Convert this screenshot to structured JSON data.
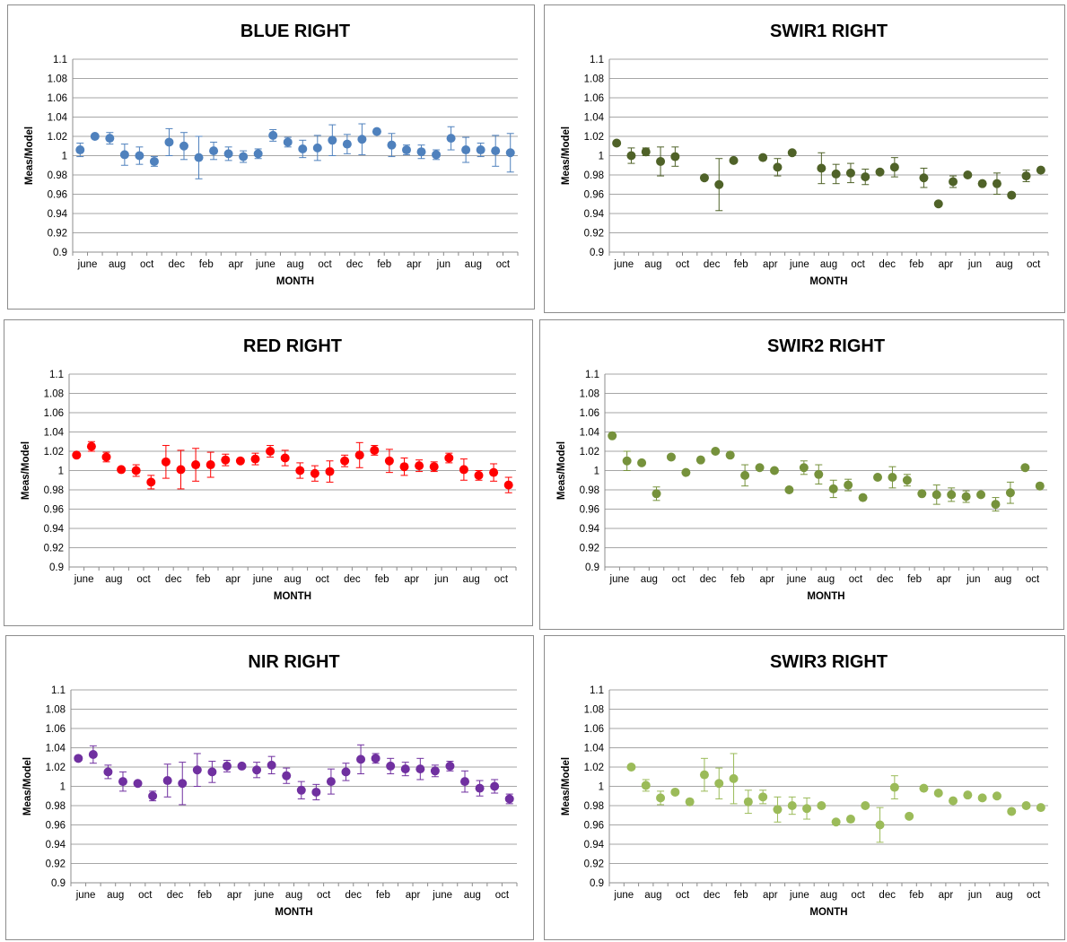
{
  "chart_data": [
    {
      "type": "scatter",
      "title": "BLUE RIGHT",
      "xlabel": "MONTH",
      "ylabel": "Meas/Model",
      "ylim": [
        0.9,
        1.1
      ],
      "ystep": 0.02,
      "grid": true,
      "color": "#4f81bd",
      "tick_labels": [
        "june",
        "aug",
        "oct",
        "dec",
        "feb",
        "apr",
        "june",
        "aug",
        "oct",
        "dec",
        "feb",
        "apr",
        "jun",
        "aug",
        "oct"
      ],
      "n_slots": 30,
      "points": [
        {
          "x": 1,
          "y": 1.006,
          "err": 0.007
        },
        {
          "x": 2,
          "y": 1.02,
          "err": 0.0
        },
        {
          "x": 3,
          "y": 1.018,
          "err": 0.006
        },
        {
          "x": 4,
          "y": 1.001,
          "err": 0.011
        },
        {
          "x": 5,
          "y": 1.0,
          "err": 0.009
        },
        {
          "x": 6,
          "y": 0.994,
          "err": 0.005
        },
        {
          "x": 7,
          "y": 1.014,
          "err": 0.014
        },
        {
          "x": 8,
          "y": 1.01,
          "err": 0.014
        },
        {
          "x": 9,
          "y": 0.998,
          "err": 0.022
        },
        {
          "x": 10,
          "y": 1.005,
          "err": 0.009
        },
        {
          "x": 11,
          "y": 1.002,
          "err": 0.007
        },
        {
          "x": 12,
          "y": 0.999,
          "err": 0.006
        },
        {
          "x": 13,
          "y": 1.002,
          "err": 0.005
        },
        {
          "x": 14,
          "y": 1.021,
          "err": 0.006
        },
        {
          "x": 15,
          "y": 1.014,
          "err": 0.005
        },
        {
          "x": 16,
          "y": 1.007,
          "err": 0.009
        },
        {
          "x": 17,
          "y": 1.008,
          "err": 0.013
        },
        {
          "x": 18,
          "y": 1.016,
          "err": 0.016
        },
        {
          "x": 19,
          "y": 1.012,
          "err": 0.01
        },
        {
          "x": 20,
          "y": 1.017,
          "err": 0.016
        },
        {
          "x": 21,
          "y": 1.025,
          "err": 0.0
        },
        {
          "x": 22,
          "y": 1.011,
          "err": 0.012
        },
        {
          "x": 23,
          "y": 1.006,
          "err": 0.005
        },
        {
          "x": 24,
          "y": 1.004,
          "err": 0.007
        },
        {
          "x": 25,
          "y": 1.001,
          "err": 0.005
        },
        {
          "x": 26,
          "y": 1.018,
          "err": 0.012
        },
        {
          "x": 27,
          "y": 1.006,
          "err": 0.013
        },
        {
          "x": 28,
          "y": 1.006,
          "err": 0.007
        },
        {
          "x": 29,
          "y": 1.005,
          "err": 0.016
        },
        {
          "x": 30,
          "y": 1.003,
          "err": 0.02
        }
      ]
    },
    {
      "type": "scatter",
      "title": "SWIR1 RIGHT",
      "xlabel": "MONTH",
      "ylabel": "Meas/Model",
      "ylim": [
        0.9,
        1.1
      ],
      "ystep": 0.02,
      "grid": true,
      "color": "#4f6228",
      "tick_labels": [
        "june",
        "aug",
        "oct",
        "dec",
        "feb",
        "apr",
        "june",
        "aug",
        "oct",
        "dec",
        "feb",
        "apr",
        "jun",
        "aug",
        "oct"
      ],
      "n_slots": 30,
      "points": [
        {
          "x": 1,
          "y": 1.013,
          "err": 0.0
        },
        {
          "x": 2,
          "y": 1.0,
          "err": 0.008
        },
        {
          "x": 3,
          "y": 1.004,
          "err": 0.004
        },
        {
          "x": 4,
          "y": 0.994,
          "err": 0.015
        },
        {
          "x": 5,
          "y": 0.999,
          "err": 0.01
        },
        {
          "x": 7,
          "y": 0.977,
          "err": 0.0
        },
        {
          "x": 8,
          "y": 0.97,
          "err": 0.027
        },
        {
          "x": 9,
          "y": 0.995,
          "err": 0.0
        },
        {
          "x": 11,
          "y": 0.998,
          "err": 0.0
        },
        {
          "x": 12,
          "y": 0.988,
          "err": 0.009
        },
        {
          "x": 13,
          "y": 1.003,
          "err": 0.0
        },
        {
          "x": 15,
          "y": 0.987,
          "err": 0.016
        },
        {
          "x": 16,
          "y": 0.981,
          "err": 0.01
        },
        {
          "x": 17,
          "y": 0.982,
          "err": 0.01
        },
        {
          "x": 18,
          "y": 0.978,
          "err": 0.008
        },
        {
          "x": 19,
          "y": 0.983,
          "err": 0.0
        },
        {
          "x": 20,
          "y": 0.988,
          "err": 0.01
        },
        {
          "x": 22,
          "y": 0.977,
          "err": 0.01
        },
        {
          "x": 23,
          "y": 0.95,
          "err": 0.0
        },
        {
          "x": 24,
          "y": 0.973,
          "err": 0.006
        },
        {
          "x": 25,
          "y": 0.98,
          "err": 0.0
        },
        {
          "x": 26,
          "y": 0.971,
          "err": 0.0
        },
        {
          "x": 27,
          "y": 0.971,
          "err": 0.011
        },
        {
          "x": 28,
          "y": 0.959,
          "err": 0.0
        },
        {
          "x": 29,
          "y": 0.979,
          "err": 0.006
        },
        {
          "x": 30,
          "y": 0.985,
          "err": 0.0
        }
      ]
    },
    {
      "type": "scatter",
      "title": "RED RIGHT",
      "xlabel": "MONTH",
      "ylabel": "Meas/Model",
      "ylim": [
        0.9,
        1.1
      ],
      "ystep": 0.02,
      "grid": true,
      "color": "#ff0000",
      "tick_labels": [
        "june",
        "aug",
        "oct",
        "dec",
        "feb",
        "apr",
        "june",
        "aug",
        "oct",
        "dec",
        "feb",
        "apr",
        "jun",
        "aug",
        "oct"
      ],
      "n_slots": 30,
      "points": [
        {
          "x": 1,
          "y": 1.016,
          "err": 0.0
        },
        {
          "x": 2,
          "y": 1.025,
          "err": 0.005
        },
        {
          "x": 3,
          "y": 1.014,
          "err": 0.005
        },
        {
          "x": 4,
          "y": 1.001,
          "err": 0.0
        },
        {
          "x": 5,
          "y": 1.0,
          "err": 0.006
        },
        {
          "x": 6,
          "y": 0.988,
          "err": 0.007
        },
        {
          "x": 7,
          "y": 1.009,
          "err": 0.017
        },
        {
          "x": 8,
          "y": 1.001,
          "err": 0.02
        },
        {
          "x": 9,
          "y": 1.006,
          "err": 0.017
        },
        {
          "x": 10,
          "y": 1.006,
          "err": 0.013
        },
        {
          "x": 11,
          "y": 1.011,
          "err": 0.006
        },
        {
          "x": 12,
          "y": 1.01,
          "err": 0.0
        },
        {
          "x": 13,
          "y": 1.012,
          "err": 0.006
        },
        {
          "x": 14,
          "y": 1.02,
          "err": 0.006
        },
        {
          "x": 15,
          "y": 1.013,
          "err": 0.008
        },
        {
          "x": 16,
          "y": 1.0,
          "err": 0.008
        },
        {
          "x": 17,
          "y": 0.997,
          "err": 0.008
        },
        {
          "x": 18,
          "y": 0.999,
          "err": 0.011
        },
        {
          "x": 19,
          "y": 1.01,
          "err": 0.006
        },
        {
          "x": 20,
          "y": 1.016,
          "err": 0.013
        },
        {
          "x": 21,
          "y": 1.021,
          "err": 0.005
        },
        {
          "x": 22,
          "y": 1.01,
          "err": 0.012
        },
        {
          "x": 23,
          "y": 1.004,
          "err": 0.009
        },
        {
          "x": 24,
          "y": 1.005,
          "err": 0.006
        },
        {
          "x": 25,
          "y": 1.004,
          "err": 0.005
        },
        {
          "x": 26,
          "y": 1.013,
          "err": 0.005
        },
        {
          "x": 27,
          "y": 1.001,
          "err": 0.011
        },
        {
          "x": 28,
          "y": 0.995,
          "err": 0.005
        },
        {
          "x": 29,
          "y": 0.998,
          "err": 0.009
        },
        {
          "x": 30,
          "y": 0.985,
          "err": 0.008
        }
      ]
    },
    {
      "type": "scatter",
      "title": "SWIR2 RIGHT",
      "xlabel": "MONTH",
      "ylabel": "Meas/Model",
      "ylim": [
        0.9,
        1.1
      ],
      "ystep": 0.02,
      "grid": true,
      "color": "#76923c",
      "tick_labels": [
        "june",
        "aug",
        "oct",
        "dec",
        "feb",
        "apr",
        "june",
        "aug",
        "oct",
        "dec",
        "feb",
        "apr",
        "jun",
        "aug",
        "oct"
      ],
      "n_slots": 30,
      "points": [
        {
          "x": 1,
          "y": 1.036,
          "err": 0.0
        },
        {
          "x": 2,
          "y": 1.01,
          "err": 0.01
        },
        {
          "x": 3,
          "y": 1.008,
          "err": 0.0
        },
        {
          "x": 4,
          "y": 0.976,
          "err": 0.007
        },
        {
          "x": 5,
          "y": 1.014,
          "err": 0.0
        },
        {
          "x": 6,
          "y": 0.998,
          "err": 0.0
        },
        {
          "x": 7,
          "y": 1.011,
          "err": 0.0
        },
        {
          "x": 8,
          "y": 1.02,
          "err": 0.0
        },
        {
          "x": 9,
          "y": 1.016,
          "err": 0.0
        },
        {
          "x": 10,
          "y": 0.995,
          "err": 0.011
        },
        {
          "x": 11,
          "y": 1.003,
          "err": 0.0
        },
        {
          "x": 12,
          "y": 1.0,
          "err": 0.0
        },
        {
          "x": 13,
          "y": 0.98,
          "err": 0.0
        },
        {
          "x": 14,
          "y": 1.003,
          "err": 0.007
        },
        {
          "x": 15,
          "y": 0.996,
          "err": 0.01
        },
        {
          "x": 16,
          "y": 0.981,
          "err": 0.009
        },
        {
          "x": 17,
          "y": 0.985,
          "err": 0.006
        },
        {
          "x": 18,
          "y": 0.972,
          "err": 0.0
        },
        {
          "x": 19,
          "y": 0.993,
          "err": 0.0
        },
        {
          "x": 20,
          "y": 0.993,
          "err": 0.011
        },
        {
          "x": 21,
          "y": 0.99,
          "err": 0.006
        },
        {
          "x": 22,
          "y": 0.976,
          "err": 0.0
        },
        {
          "x": 23,
          "y": 0.975,
          "err": 0.01
        },
        {
          "x": 24,
          "y": 0.975,
          "err": 0.007
        },
        {
          "x": 25,
          "y": 0.973,
          "err": 0.006
        },
        {
          "x": 26,
          "y": 0.975,
          "err": 0.0
        },
        {
          "x": 27,
          "y": 0.965,
          "err": 0.007
        },
        {
          "x": 28,
          "y": 0.977,
          "err": 0.011
        },
        {
          "x": 29,
          "y": 1.003,
          "err": 0.0
        },
        {
          "x": 30,
          "y": 0.984,
          "err": 0.0
        }
      ]
    },
    {
      "type": "scatter",
      "title": "NIR RIGHT",
      "xlabel": "MONTH",
      "ylabel": "Meas/Model",
      "ylim": [
        0.9,
        1.1
      ],
      "ystep": 0.02,
      "grid": true,
      "color": "#7030a0",
      "tick_labels": [
        "june",
        "aug",
        "oct",
        "dec",
        "feb",
        "apr",
        "june",
        "aug",
        "oct",
        "dec",
        "feb",
        "apr",
        "june",
        "aug",
        "oct"
      ],
      "n_slots": 30,
      "points": [
        {
          "x": 1,
          "y": 1.029,
          "err": 0.0
        },
        {
          "x": 2,
          "y": 1.033,
          "err": 0.009
        },
        {
          "x": 3,
          "y": 1.015,
          "err": 0.007
        },
        {
          "x": 4,
          "y": 1.005,
          "err": 0.01
        },
        {
          "x": 5,
          "y": 1.003,
          "err": 0.0
        },
        {
          "x": 6,
          "y": 0.99,
          "err": 0.005
        },
        {
          "x": 7,
          "y": 1.006,
          "err": 0.017
        },
        {
          "x": 8,
          "y": 1.003,
          "err": 0.022
        },
        {
          "x": 9,
          "y": 1.017,
          "err": 0.017
        },
        {
          "x": 10,
          "y": 1.015,
          "err": 0.011
        },
        {
          "x": 11,
          "y": 1.021,
          "err": 0.006
        },
        {
          "x": 12,
          "y": 1.021,
          "err": 0.0
        },
        {
          "x": 13,
          "y": 1.017,
          "err": 0.008
        },
        {
          "x": 14,
          "y": 1.022,
          "err": 0.009
        },
        {
          "x": 15,
          "y": 1.011,
          "err": 0.008
        },
        {
          "x": 16,
          "y": 0.996,
          "err": 0.009
        },
        {
          "x": 17,
          "y": 0.994,
          "err": 0.008
        },
        {
          "x": 18,
          "y": 1.005,
          "err": 0.013
        },
        {
          "x": 19,
          "y": 1.015,
          "err": 0.009
        },
        {
          "x": 20,
          "y": 1.028,
          "err": 0.015
        },
        {
          "x": 21,
          "y": 1.029,
          "err": 0.005
        },
        {
          "x": 22,
          "y": 1.021,
          "err": 0.008
        },
        {
          "x": 23,
          "y": 1.018,
          "err": 0.007
        },
        {
          "x": 24,
          "y": 1.018,
          "err": 0.011
        },
        {
          "x": 25,
          "y": 1.016,
          "err": 0.006
        },
        {
          "x": 26,
          "y": 1.021,
          "err": 0.005
        },
        {
          "x": 27,
          "y": 1.005,
          "err": 0.011
        },
        {
          "x": 28,
          "y": 0.998,
          "err": 0.008
        },
        {
          "x": 29,
          "y": 1.0,
          "err": 0.007
        },
        {
          "x": 30,
          "y": 0.987,
          "err": 0.005
        }
      ]
    },
    {
      "type": "scatter",
      "title": "SWIR3 RIGHT",
      "xlabel": "MONTH",
      "ylabel": "Meas/Model",
      "ylim": [
        0.9,
        1.1
      ],
      "ystep": 0.02,
      "grid": true,
      "color": "#9bbb59",
      "tick_labels": [
        "june",
        "aug",
        "oct",
        "dec",
        "feb",
        "apr",
        "june",
        "aug",
        "oct",
        "dec",
        "feb",
        "apr",
        "jun",
        "aug",
        "oct"
      ],
      "n_slots": 30,
      "points": [
        {
          "x": 2,
          "y": 1.02,
          "err": 0.0
        },
        {
          "x": 3,
          "y": 1.001,
          "err": 0.006
        },
        {
          "x": 4,
          "y": 0.988,
          "err": 0.007
        },
        {
          "x": 5,
          "y": 0.994,
          "err": 0.0
        },
        {
          "x": 6,
          "y": 0.984,
          "err": 0.0
        },
        {
          "x": 7,
          "y": 1.012,
          "err": 0.017
        },
        {
          "x": 8,
          "y": 1.003,
          "err": 0.016
        },
        {
          "x": 9,
          "y": 1.008,
          "err": 0.026
        },
        {
          "x": 10,
          "y": 0.984,
          "err": 0.012
        },
        {
          "x": 11,
          "y": 0.989,
          "err": 0.007
        },
        {
          "x": 12,
          "y": 0.976,
          "err": 0.013
        },
        {
          "x": 13,
          "y": 0.98,
          "err": 0.009
        },
        {
          "x": 14,
          "y": 0.977,
          "err": 0.011
        },
        {
          "x": 15,
          "y": 0.98,
          "err": 0.0
        },
        {
          "x": 16,
          "y": 0.963,
          "err": 0.0
        },
        {
          "x": 17,
          "y": 0.966,
          "err": 0.0
        },
        {
          "x": 18,
          "y": 0.98,
          "err": 0.0
        },
        {
          "x": 19,
          "y": 0.96,
          "err": 0.018
        },
        {
          "x": 20,
          "y": 0.999,
          "err": 0.012
        },
        {
          "x": 21,
          "y": 0.969,
          "err": 0.0
        },
        {
          "x": 22,
          "y": 0.998,
          "err": 0.0
        },
        {
          "x": 23,
          "y": 0.993,
          "err": 0.0
        },
        {
          "x": 24,
          "y": 0.985,
          "err": 0.0
        },
        {
          "x": 25,
          "y": 0.991,
          "err": 0.0
        },
        {
          "x": 26,
          "y": 0.988,
          "err": 0.0
        },
        {
          "x": 27,
          "y": 0.99,
          "err": 0.0
        },
        {
          "x": 28,
          "y": 0.974,
          "err": 0.0
        },
        {
          "x": 29,
          "y": 0.98,
          "err": 0.0
        },
        {
          "x": 30,
          "y": 0.978,
          "err": 0.0
        }
      ]
    }
  ]
}
